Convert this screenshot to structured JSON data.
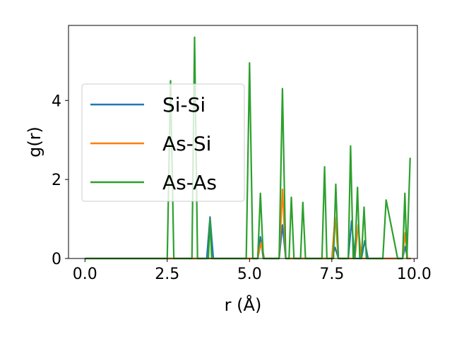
{
  "chart_data": {
    "type": "line",
    "title": "",
    "xlabel": "r (Å)",
    "ylabel": "g(r)",
    "xlim": [
      -0.5,
      10.1
    ],
    "ylim": [
      0,
      5.9
    ],
    "xticks": [
      0.0,
      2.5,
      5.0,
      7.5,
      10.0
    ],
    "xtick_labels": [
      "0.0",
      "2.5",
      "5.0",
      "7.5",
      "10.0"
    ],
    "yticks": [
      0,
      2,
      4
    ],
    "ytick_labels": [
      "0",
      "2",
      "4"
    ],
    "grid": false,
    "legend_position": "center-left",
    "series": [
      {
        "name": "Si-Si",
        "color": "#1f77b4",
        "x": [
          0.0,
          3.7,
          3.8,
          3.9,
          5.25,
          5.33,
          5.42,
          5.9,
          6.0,
          6.1,
          7.5,
          7.6,
          7.7,
          8.0,
          8.1,
          8.2,
          8.4,
          8.5,
          8.6,
          9.65,
          9.73,
          9.8,
          9.9
        ],
        "y": [
          0.0,
          0.0,
          1.05,
          0.0,
          0.0,
          0.55,
          0.0,
          0.0,
          0.85,
          0.0,
          0.0,
          0.28,
          0.0,
          0.0,
          0.95,
          0.0,
          0.0,
          0.45,
          0.0,
          0.0,
          0.3,
          0.0,
          0.0
        ]
      },
      {
        "name": "As-Si",
        "color": "#ff7f0e",
        "x": [
          0.0,
          5.25,
          5.35,
          5.45,
          5.9,
          6.0,
          6.1,
          7.5,
          7.6,
          7.7,
          8.2,
          8.3,
          8.4,
          9.65,
          9.73,
          9.8,
          9.9
        ],
        "y": [
          0.0,
          0.0,
          0.4,
          0.0,
          0.0,
          1.75,
          0.0,
          0.0,
          1.05,
          0.0,
          0.0,
          0.85,
          0.0,
          0.0,
          0.65,
          0.0,
          0.0
        ]
      },
      {
        "name": "As-As",
        "color": "#2ca02c",
        "x": [
          0.0,
          2.5,
          2.6,
          2.7,
          3.25,
          3.33,
          3.42,
          3.75,
          3.8,
          3.85,
          4.9,
          5.0,
          5.1,
          5.25,
          5.33,
          5.42,
          5.9,
          6.0,
          6.1,
          6.2,
          6.27,
          6.35,
          6.55,
          6.62,
          6.7,
          7.2,
          7.28,
          7.35,
          7.55,
          7.62,
          7.7,
          8.0,
          8.07,
          8.15,
          8.2,
          8.28,
          8.35,
          8.4,
          8.48,
          8.55,
          9.05,
          9.15,
          9.5,
          9.65,
          9.72,
          9.78,
          9.88
        ],
        "y": [
          0.0,
          0.0,
          4.5,
          0.0,
          0.0,
          5.6,
          0.0,
          0.0,
          1.0,
          0.0,
          0.0,
          4.95,
          0.0,
          0.0,
          1.65,
          0.0,
          0.0,
          4.3,
          0.0,
          0.0,
          1.55,
          0.0,
          0.0,
          1.42,
          0.0,
          0.0,
          2.32,
          0.0,
          0.0,
          1.88,
          0.0,
          0.0,
          2.85,
          0.0,
          0.0,
          1.8,
          0.0,
          0.0,
          1.3,
          0.0,
          0.0,
          1.48,
          0.0,
          0.0,
          1.65,
          0.0,
          2.55
        ]
      }
    ]
  }
}
